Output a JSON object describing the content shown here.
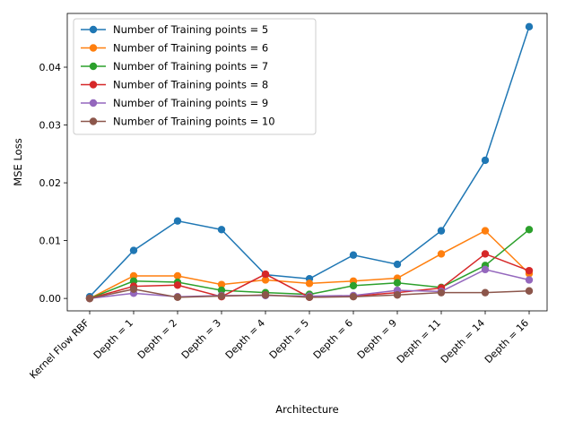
{
  "chart_data": {
    "type": "line",
    "xlabel": "Architecture",
    "ylabel": "MSE Loss",
    "categories": [
      "Kernel Flow RBF",
      "Depth = 1",
      "Depth = 2",
      "Depth = 3",
      "Depth = 4",
      "Depth = 5",
      "Depth = 6",
      "Depth = 9",
      "Depth = 11",
      "Depth = 14",
      "Depth = 16"
    ],
    "ylim": [
      -0.00215,
      0.0493
    ],
    "yticks": [
      0.0,
      0.01,
      0.02,
      0.03,
      0.04
    ],
    "ytick_labels": [
      "0.00",
      "0.01",
      "0.02",
      "0.03",
      "0.04"
    ],
    "grid": false,
    "legend": "top-left",
    "series": [
      {
        "name": "Number of Training points = 5",
        "color": "#1f77b4",
        "values": [
          0.0003,
          0.0083,
          0.0134,
          0.0119,
          0.0041,
          0.0034,
          0.0075,
          0.0059,
          0.0117,
          0.0239,
          0.047
        ]
      },
      {
        "name": "Number of Training points = 6",
        "color": "#ff7f0e",
        "values": [
          0.0,
          0.0039,
          0.0039,
          0.0024,
          0.0032,
          0.0026,
          0.003,
          0.0035,
          0.0077,
          0.0117,
          0.0043
        ]
      },
      {
        "name": "Number of Training points = 7",
        "color": "#2ca02c",
        "values": [
          0.0,
          0.003,
          0.0028,
          0.0014,
          0.001,
          0.0007,
          0.0022,
          0.0027,
          0.0019,
          0.0057,
          0.0119
        ]
      },
      {
        "name": "Number of Training points = 8",
        "color": "#d62728",
        "values": [
          0.0,
          0.0021,
          0.0023,
          0.0003,
          0.0042,
          0.0002,
          0.0004,
          0.001,
          0.0018,
          0.0077,
          0.0048
        ]
      },
      {
        "name": "Number of Training points = 9",
        "color": "#9467bd",
        "values": [
          0.0,
          0.0009,
          0.0003,
          0.0005,
          0.0005,
          0.0004,
          0.0005,
          0.0014,
          0.0012,
          0.005,
          0.0032
        ]
      },
      {
        "name": "Number of Training points = 10",
        "color": "#8c564b",
        "values": [
          0.0,
          0.0016,
          0.0002,
          0.0004,
          0.0006,
          0.0002,
          0.0003,
          0.0006,
          0.001,
          0.001,
          0.0013
        ]
      }
    ]
  }
}
